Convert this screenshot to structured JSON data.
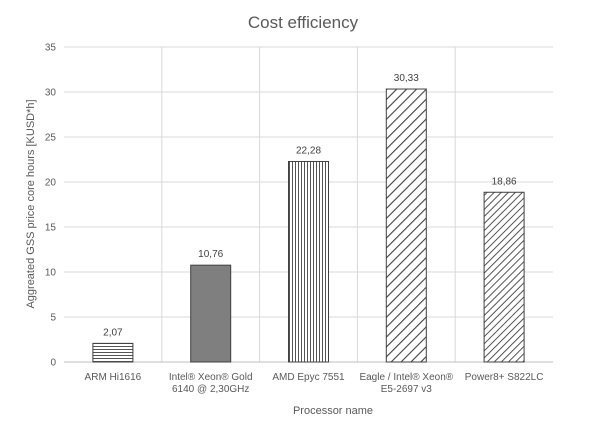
{
  "chart_data": {
    "type": "bar",
    "title": "Cost efficiency",
    "xlabel": "Processor name",
    "ylabel": "Aggreated  GSS  price core hours [KUSD*h]",
    "ylim": [
      0,
      35
    ],
    "yticks": [
      "0",
      "5",
      "10",
      "15",
      "20",
      "25",
      "30",
      "35"
    ],
    "grid": true,
    "categories": [
      [
        "ARM Hi1616"
      ],
      [
        "Intel® Xeon® Gold",
        "6140 @ 2,30GHz"
      ],
      [
        "AMD Epyc 7551"
      ],
      [
        "Eagle / Intel® Xeon®",
        "E5-2697 v3"
      ],
      [
        "Power8+ S822LC"
      ]
    ],
    "values": [
      2.07,
      10.76,
      22.28,
      30.33,
      18.86
    ],
    "data_labels": [
      "2,07",
      "10,76",
      "22,28",
      "30,33",
      "18,86"
    ],
    "patterns": [
      "horizontal",
      "solid",
      "vertical",
      "diagonal-wide",
      "diagonal-dense"
    ],
    "colors": {
      "bar_stroke": "#404040",
      "solid_fill": "#7f7f7f",
      "grid": "#d9d9d9",
      "text": "#595959"
    }
  }
}
